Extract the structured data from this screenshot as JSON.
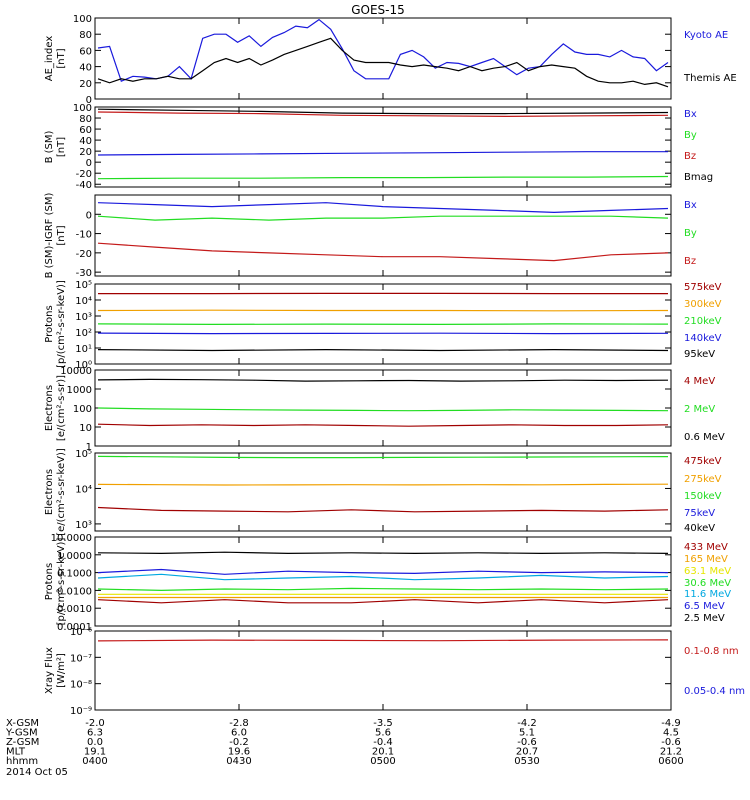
{
  "title": "GOES-15",
  "date_label": "2014 Oct 05",
  "colors": {
    "black": "#000000",
    "blue": "#1a1adc",
    "green": "#22dd22",
    "red": "#c41a1a",
    "orange": "#f0a000",
    "cyan": "#00a8e0",
    "yellow": "#e6e600",
    "darkred": "#a00000",
    "lightgreen": "#22dd22"
  },
  "x_axis": {
    "rows": [
      {
        "label": "X-GSM",
        "values": [
          "-2.0",
          "-2.8",
          "-3.5",
          "-4.2",
          "-4.9"
        ]
      },
      {
        "label": "Y-GSM",
        "values": [
          "6.3",
          "6.0",
          "5.6",
          "5.1",
          "4.5"
        ]
      },
      {
        "label": "Z-GSM",
        "values": [
          "0.0",
          "-0.2",
          "-0.4",
          "-0.6",
          "-0.6"
        ]
      },
      {
        "label": "MLT",
        "values": [
          "19.1",
          "19.6",
          "20.1",
          "20.7",
          "21.2"
        ]
      },
      {
        "label": "hhmm",
        "values": [
          "0400",
          "0430",
          "0500",
          "0530",
          "0600"
        ]
      }
    ]
  },
  "chart_data": [
    {
      "type": "line",
      "ylabel": "AE_index\n[nT]",
      "ylim": [
        0,
        100
      ],
      "yticks": [
        "0",
        "20",
        "40",
        "60",
        "80",
        "100"
      ],
      "x_range": [
        "0400",
        "0600"
      ],
      "series": [
        {
          "name": "Kyoto AE",
          "color": "blue",
          "values": [
            63,
            65,
            22,
            28,
            27,
            25,
            28,
            40,
            25,
            75,
            80,
            80,
            70,
            78,
            65,
            76,
            82,
            90,
            88,
            98,
            86,
            62,
            35,
            25,
            25,
            25,
            55,
            60,
            52,
            38,
            45,
            44,
            40,
            45,
            50,
            40,
            30,
            38,
            40,
            55,
            68,
            58,
            55,
            55,
            52,
            60,
            52,
            50,
            35,
            45
          ]
        },
        {
          "name": "Themis AE",
          "color": "black",
          "values": [
            25,
            20,
            25,
            22,
            25,
            25,
            28,
            25,
            25,
            35,
            45,
            50,
            45,
            50,
            42,
            48,
            55,
            60,
            65,
            70,
            75,
            60,
            48,
            45,
            45,
            45,
            42,
            40,
            42,
            40,
            38,
            35,
            40,
            35,
            38,
            40,
            45,
            35,
            40,
            42,
            40,
            38,
            28,
            22,
            20,
            20,
            22,
            18,
            20,
            15
          ]
        }
      ]
    },
    {
      "type": "line",
      "ylabel": "B (SM)\n[nT]",
      "ylim": [
        -45,
        100
      ],
      "yticks": [
        "-40",
        "-20",
        "0",
        "20",
        "40",
        "60",
        "80",
        "100"
      ],
      "series": [
        {
          "name": "Bx",
          "color": "blue",
          "values": [
            13,
            14,
            15,
            16,
            17,
            18,
            19,
            19
          ]
        },
        {
          "name": "By",
          "color": "green",
          "values": [
            -30,
            -29,
            -29,
            -28,
            -28,
            -27,
            -27,
            -26
          ]
        },
        {
          "name": "Bz",
          "color": "red",
          "values": [
            91,
            89,
            88,
            85,
            84,
            83,
            84,
            85
          ]
        },
        {
          "name": "Bmag",
          "color": "black",
          "values": [
            96,
            94,
            92,
            89,
            88,
            88,
            89,
            90
          ]
        }
      ]
    },
    {
      "type": "line",
      "ylabel": "B (SM)-IGRF (SM)\n[nT]",
      "ylim": [
        -32,
        10
      ],
      "yticks": [
        "-30",
        "-20",
        "-10",
        "0"
      ],
      "series": [
        {
          "name": "Bx",
          "color": "blue",
          "values": [
            6,
            5,
            4,
            5,
            6,
            4,
            3,
            2,
            1,
            2,
            3
          ]
        },
        {
          "name": "By",
          "color": "green",
          "values": [
            -1,
            -3,
            -2,
            -3,
            -2,
            -2,
            -1,
            -1,
            -1,
            -1,
            -2
          ]
        },
        {
          "name": "Bz",
          "color": "red",
          "values": [
            -15,
            -17,
            -19,
            -20,
            -21,
            -22,
            -22,
            -23,
            -24,
            -21,
            -20
          ]
        }
      ]
    },
    {
      "type": "line",
      "ylabel": "Protons\n[p/(cm²-s-sr-keV)]",
      "scale": "log",
      "ylim_exp": [
        0,
        5
      ],
      "yticks": [
        "10⁰",
        "10¹",
        "10²",
        "10³",
        "10⁴",
        "10⁵"
      ],
      "series": [
        {
          "name": "575keV",
          "color": "darkred",
          "values": [
            25000.0,
            25000.0,
            26000.0,
            26000.0,
            25000.0,
            25000.0
          ]
        },
        {
          "name": "300keV",
          "color": "orange",
          "values": [
            2200.0,
            2300.0,
            2200.0,
            2200.0,
            2100.0,
            2200.0
          ]
        },
        {
          "name": "210keV",
          "color": "green",
          "values": [
            320,
            300,
            310,
            300,
            320,
            310
          ]
        },
        {
          "name": "140keV",
          "color": "blue",
          "values": [
            85,
            80,
            82,
            84,
            80,
            83
          ]
        },
        {
          "name": "95keV",
          "color": "black",
          "values": [
            8,
            7,
            8,
            7,
            8,
            7
          ]
        }
      ]
    },
    {
      "type": "line",
      "ylabel": "Electrons\n[e/(cm²-s-sr)]",
      "scale": "log",
      "ylim_exp": [
        0,
        4
      ],
      "yticks": [
        "1",
        "10",
        "100",
        "1000",
        "10000"
      ],
      "series": [
        {
          "name": "4 MeV",
          "color": "darkred",
          "values": [
            14,
            12,
            13,
            12,
            13,
            12,
            11,
            12,
            13,
            12,
            12,
            13
          ]
        },
        {
          "name": "2 MeV",
          "color": "green",
          "values": [
            100,
            90,
            85,
            80,
            78,
            75,
            72,
            75,
            80,
            78,
            75,
            72
          ]
        },
        {
          "name": "0.6 MeV",
          "color": "black",
          "values": [
            3000,
            3200,
            3100,
            2900,
            2600,
            2700,
            2800,
            2600,
            2700,
            2900,
            2800,
            2900
          ]
        }
      ]
    },
    {
      "type": "line",
      "ylabel": "Electrons\n[e/(cm²-s-sr-keV)]",
      "scale": "log",
      "ylim_exp": [
        2.8,
        5
      ],
      "yticks": [
        "10³",
        "10⁴",
        "10⁵"
      ],
      "series": [
        {
          "name": "475keV",
          "color": "darkred",
          "values": [
            2900,
            2400,
            2300,
            2200,
            2500,
            2200,
            2300,
            2400,
            2300,
            2500
          ]
        },
        {
          "name": "275keV",
          "color": "orange",
          "values": [
            13000,
            12800,
            12500,
            12600,
            12800,
            12600,
            12800,
            12700,
            13000,
            13200
          ]
        },
        {
          "name": "150keV",
          "color": "green",
          "values": [
            80000,
            78000,
            75000,
            74000,
            74000,
            75000,
            76000,
            77000,
            78000,
            79000
          ]
        },
        {
          "name": "75keV",
          "color": "blue",
          "values": []
        },
        {
          "name": "40keV",
          "color": "black",
          "values": []
        }
      ]
    },
    {
      "type": "line",
      "ylabel": "Protons\n[p/(cm²-s-sr-keV)]",
      "scale": "log",
      "ylim_exp": [
        -4,
        1
      ],
      "yticks": [
        "0.0001",
        "0.0010",
        "0.0100",
        "0.1000",
        "1.0000",
        "10.0000"
      ],
      "series": [
        {
          "name": "433 MeV",
          "color": "darkred",
          "values": [
            0.003,
            0.002,
            0.003,
            0.002,
            0.002,
            0.003,
            0.002,
            0.003,
            0.002,
            0.003
          ]
        },
        {
          "name": "165 MeV",
          "color": "orange",
          "values": [
            0.004,
            0.004,
            0.004,
            0.004,
            0.004,
            0.004,
            0.004,
            0.004,
            0.004,
            0.004
          ]
        },
        {
          "name": "63.1 MeV",
          "color": "yellow",
          "values": [
            0.006,
            0.006,
            0.006,
            0.006,
            0.006,
            0.006,
            0.006,
            0.006,
            0.006,
            0.006
          ]
        },
        {
          "name": "30.6 MeV",
          "color": "lightgreen",
          "values": [
            0.012,
            0.01,
            0.012,
            0.011,
            0.013,
            0.012,
            0.011,
            0.012,
            0.011,
            0.012
          ]
        },
        {
          "name": "11.6 MeV",
          "color": "cyan",
          "values": [
            0.05,
            0.08,
            0.04,
            0.05,
            0.06,
            0.04,
            0.05,
            0.07,
            0.05,
            0.06
          ]
        },
        {
          "name": "6.5 MeV",
          "color": "blue",
          "values": [
            0.1,
            0.15,
            0.08,
            0.12,
            0.1,
            0.09,
            0.12,
            0.1,
            0.11,
            0.1
          ]
        },
        {
          "name": "2.5 MeV",
          "color": "black",
          "values": [
            1.3,
            1.2,
            1.4,
            1.2,
            1.3,
            1.2,
            1.3,
            1.2,
            1.3,
            1.2
          ]
        }
      ]
    },
    {
      "type": "line",
      "ylabel": "Xray Flux\n[W/m²]",
      "scale": "log",
      "ylim_exp": [
        -9,
        -6
      ],
      "yticks": [
        "10⁻⁹",
        "10⁻⁸",
        "10⁻⁷",
        "10⁻⁶"
      ],
      "series": [
        {
          "name": "0.1-0.8 nm",
          "color": "red",
          "values": [
            4.2e-07,
            4.5e-07,
            4.4e-07,
            4.3e-07,
            4.5e-07,
            4.6e-07
          ]
        },
        {
          "name": "0.05-0.4 nm",
          "color": "blue",
          "values": []
        }
      ]
    }
  ]
}
